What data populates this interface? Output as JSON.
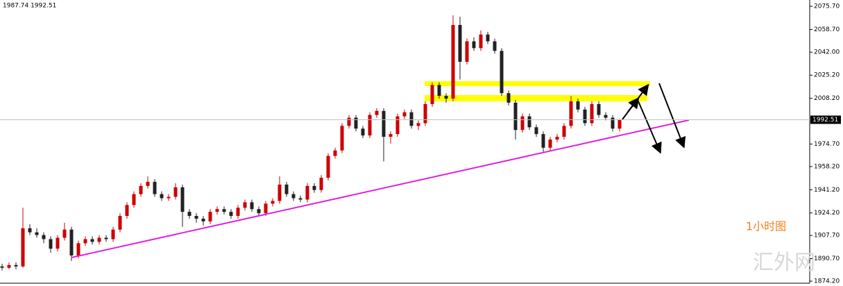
{
  "chart_data": {
    "type": "candlestick",
    "info": "1987.74 1992.51",
    "annotation": "1小时图",
    "watermark": "汇外网",
    "up_color": "#cc0000",
    "down_color": "#222222",
    "ylim": [
      1870.64,
      2080.28
    ],
    "yticks": [
      {
        "value": 2075.7,
        "label": "2075.70"
      },
      {
        "value": 2058.7,
        "label": "2058.70"
      },
      {
        "value": 2042.0,
        "label": "2042.00"
      },
      {
        "value": 2025.2,
        "label": "2025.20"
      },
      {
        "value": 2008.2,
        "label": "2008.20"
      },
      {
        "value": 1974.7,
        "label": "1974.70"
      },
      {
        "value": 1958.2,
        "label": "1958.20"
      },
      {
        "value": 1941.2,
        "label": "1941.20"
      },
      {
        "value": 1924.2,
        "label": "1924.20"
      },
      {
        "value": 1907.7,
        "label": "1907.70"
      },
      {
        "value": 1890.7,
        "label": "1890.70"
      },
      {
        "value": 1874.2,
        "label": "1874.20"
      }
    ],
    "last_price": {
      "value": 1992.51,
      "label": "1992.51"
    },
    "ohlc": [
      [
        1885,
        1887,
        1882,
        1884
      ],
      [
        1884,
        1888,
        1883,
        1886
      ],
      [
        1886,
        1888,
        1883,
        1885
      ],
      [
        1885,
        1928,
        1884,
        1913
      ],
      [
        1913,
        1916,
        1908,
        1910
      ],
      [
        1910,
        1913,
        1906,
        1908
      ],
      [
        1908,
        1910,
        1902,
        1905
      ],
      [
        1905,
        1907,
        1895,
        1898
      ],
      [
        1898,
        1908,
        1896,
        1906
      ],
      [
        1906,
        1917,
        1904,
        1912
      ],
      [
        1912,
        1914,
        1889,
        1893
      ],
      [
        1893,
        1904,
        1891,
        1902
      ],
      [
        1902,
        1907,
        1900,
        1905
      ],
      [
        1905,
        1907,
        1901,
        1903
      ],
      [
        1903,
        1908,
        1901,
        1906
      ],
      [
        1906,
        1908,
        1903,
        1905
      ],
      [
        1905,
        1914,
        1903,
        1912
      ],
      [
        1912,
        1924,
        1910,
        1922
      ],
      [
        1922,
        1932,
        1920,
        1930
      ],
      [
        1930,
        1940,
        1928,
        1938
      ],
      [
        1938,
        1946,
        1936,
        1944
      ],
      [
        1944,
        1951,
        1942,
        1947
      ],
      [
        1947,
        1949,
        1936,
        1938
      ],
      [
        1938,
        1940,
        1933,
        1935
      ],
      [
        1935,
        1938,
        1933,
        1936
      ],
      [
        1936,
        1946,
        1934,
        1943
      ],
      [
        1943,
        1945,
        1914,
        1925
      ],
      [
        1925,
        1927,
        1920,
        1922
      ],
      [
        1922,
        1924,
        1917,
        1920
      ],
      [
        1920,
        1922,
        1915,
        1918
      ],
      [
        1918,
        1927,
        1916,
        1925
      ],
      [
        1925,
        1929,
        1923,
        1927
      ],
      [
        1927,
        1929,
        1923,
        1925
      ],
      [
        1925,
        1927,
        1920,
        1922
      ],
      [
        1922,
        1930,
        1920,
        1928
      ],
      [
        1928,
        1934,
        1926,
        1932
      ],
      [
        1932,
        1934,
        1925,
        1927
      ],
      [
        1927,
        1929,
        1922,
        1924
      ],
      [
        1924,
        1933,
        1922,
        1931
      ],
      [
        1931,
        1935,
        1929,
        1933
      ],
      [
        1933,
        1951,
        1931,
        1945
      ],
      [
        1945,
        1947,
        1936,
        1938
      ],
      [
        1938,
        1940,
        1933,
        1935
      ],
      [
        1935,
        1937,
        1932,
        1934
      ],
      [
        1934,
        1946,
        1932,
        1944
      ],
      [
        1944,
        1946,
        1939,
        1941
      ],
      [
        1941,
        1952,
        1939,
        1950
      ],
      [
        1950,
        1968,
        1948,
        1966
      ],
      [
        1966,
        1972,
        1964,
        1970
      ],
      [
        1970,
        1990,
        1968,
        1988
      ],
      [
        1988,
        1996,
        1986,
        1994
      ],
      [
        1994,
        1996,
        1984,
        1986
      ],
      [
        1986,
        1988,
        1979,
        1981
      ],
      [
        1981,
        1998,
        1979,
        1996
      ],
      [
        1996,
        2001,
        1994,
        1999
      ],
      [
        1999,
        2001,
        1962,
        1980
      ],
      [
        1980,
        1984,
        1975,
        1982
      ],
      [
        1982,
        1997,
        1980,
        1995
      ],
      [
        1995,
        2000,
        1993,
        1998
      ],
      [
        1998,
        2000,
        1986,
        1988
      ],
      [
        1988,
        1992,
        1985,
        1990
      ],
      [
        1990,
        2006,
        1988,
        2004
      ],
      [
        2004,
        2020,
        2002,
        2018
      ],
      [
        2018,
        2020,
        2008,
        2010
      ],
      [
        2010,
        2012,
        2005,
        2008
      ],
      [
        2008,
        2069,
        2006,
        2062
      ],
      [
        2062,
        2068,
        2022,
        2035
      ],
      [
        2035,
        2052,
        2033,
        2050
      ],
      [
        2050,
        2053,
        2043,
        2045
      ],
      [
        2045,
        2058,
        2043,
        2055
      ],
      [
        2055,
        2057,
        2048,
        2050
      ],
      [
        2050,
        2052,
        2041,
        2043
      ],
      [
        2043,
        2045,
        2010,
        2012
      ],
      [
        2012,
        2014,
        2003,
        2005
      ],
      [
        2005,
        2007,
        1978,
        1985
      ],
      [
        1985,
        1997,
        1983,
        1995
      ],
      [
        1995,
        1997,
        1985,
        1987
      ],
      [
        1987,
        1989,
        1980,
        1982
      ],
      [
        1982,
        1984,
        1969,
        1972
      ],
      [
        1972,
        1980,
        1970,
        1978
      ],
      [
        1978,
        1982,
        1976,
        1980
      ],
      [
        1980,
        1990,
        1978,
        1988
      ],
      [
        1988,
        2010,
        1986,
        2006
      ],
      [
        2006,
        2008,
        1998,
        2000
      ],
      [
        2000,
        2002,
        1988,
        1990
      ],
      [
        1990,
        2006,
        1988,
        2004
      ],
      [
        2004,
        2006,
        1994,
        1996
      ],
      [
        1996,
        1998,
        1992,
        1994
      ],
      [
        1994,
        1996,
        1984,
        1986
      ],
      [
        1986,
        1993,
        1984,
        1992.51
      ]
    ]
  }
}
